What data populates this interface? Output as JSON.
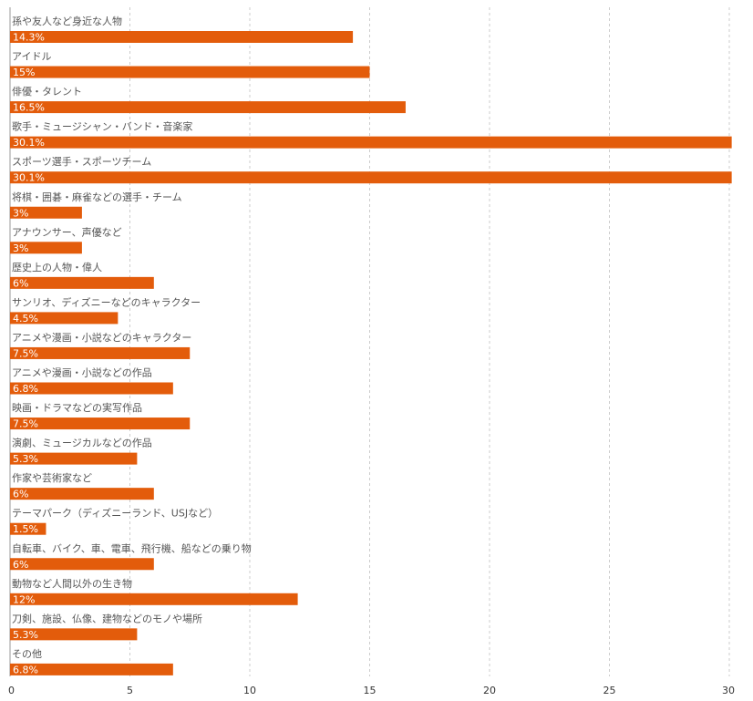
{
  "chart_data": {
    "type": "bar",
    "orientation": "horizontal",
    "categories": [
      "孫や友人など身近な人物",
      "アイドル",
      "俳優・タレント",
      "歌手・ミュージシャン・バンド・音楽家",
      "スポーツ選手・スポーツチーム",
      "将棋・囲碁・麻雀などの選手・チーム",
      "アナウンサー、声優など",
      "歴史上の人物・偉人",
      "サンリオ、ディズニーなどのキャラクター",
      "アニメや漫画・小説などのキャラクター",
      "アニメや漫画・小説などの作品",
      "映画・ドラマなどの実写作品",
      "演劇、ミュージカルなどの作品",
      "作家や芸術家など",
      "テーマパーク（ディズニーランド、USJなど）",
      "自転車、バイク、車、電車、飛行機、船などの乗り物",
      "動物など人間以外の生き物",
      "刀剣、施設、仏像、建物などのモノや場所",
      "その他"
    ],
    "values": [
      14.3,
      15,
      16.5,
      30.1,
      30.1,
      3,
      3,
      6,
      4.5,
      7.5,
      6.8,
      7.5,
      5.3,
      6,
      1.5,
      6,
      12,
      5.3,
      6.8
    ],
    "value_labels": [
      "14.3%",
      "15%",
      "16.5%",
      "30.1%",
      "30.1%",
      "3%",
      "3%",
      "6%",
      "4.5%",
      "7.5%",
      "6.8%",
      "7.5%",
      "5.3%",
      "6%",
      "1.5%",
      "6%",
      "12%",
      "5.3%",
      "6.8%"
    ],
    "x_ticks": [
      0,
      5,
      10,
      15,
      20,
      25,
      30
    ],
    "xlim": [
      0,
      30
    ],
    "grid": true,
    "bar_color": "#E35C0B",
    "title": "",
    "xlabel": "",
    "ylabel": ""
  }
}
